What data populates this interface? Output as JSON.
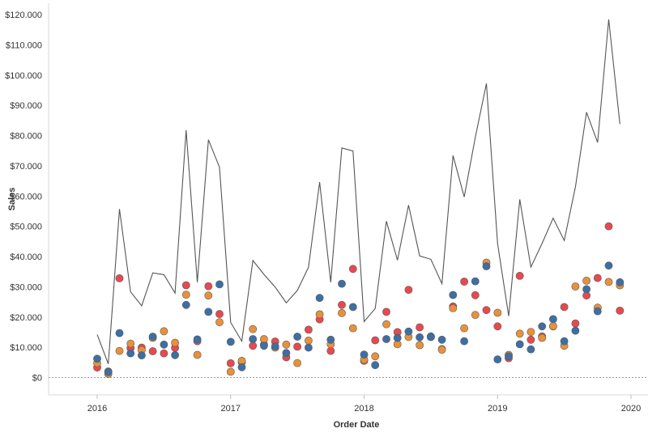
{
  "chart_data": {
    "type": "line",
    "xlabel": "Order Date",
    "ylabel": "Sales",
    "xlim": [
      2016,
      2020
    ],
    "ylim": [
      0,
      120000
    ],
    "x_ticks": [
      {
        "value": 2016,
        "label": "2016"
      },
      {
        "value": 2017,
        "label": "2017"
      },
      {
        "value": 2018,
        "label": "2018"
      },
      {
        "value": 2019,
        "label": "2019"
      },
      {
        "value": 2020,
        "label": "2020"
      }
    ],
    "y_ticks": [
      {
        "value": 0,
        "label": "$0"
      },
      {
        "value": 10000,
        "label": "$10.000"
      },
      {
        "value": 20000,
        "label": "$20.000"
      },
      {
        "value": 30000,
        "label": "$30.000"
      },
      {
        "value": 40000,
        "label": "$40.000"
      },
      {
        "value": 50000,
        "label": "$50.000"
      },
      {
        "value": 60000,
        "label": "$60.000"
      },
      {
        "value": 70000,
        "label": "$70.000"
      },
      {
        "value": 80000,
        "label": "$80.000"
      },
      {
        "value": 90000,
        "label": "$90.000"
      },
      {
        "value": 100000,
        "label": "$100.000"
      },
      {
        "value": 110000,
        "label": "$110.000"
      },
      {
        "value": 120000,
        "label": "$120.000"
      }
    ],
    "grid": false,
    "legend": "none",
    "zero_line": "dotted",
    "x": [
      "2016-01",
      "2016-02",
      "2016-03",
      "2016-04",
      "2016-05",
      "2016-06",
      "2016-07",
      "2016-08",
      "2016-09",
      "2016-10",
      "2016-11",
      "2016-12",
      "2017-01",
      "2017-02",
      "2017-03",
      "2017-04",
      "2017-05",
      "2017-06",
      "2017-07",
      "2017-08",
      "2017-09",
      "2017-10",
      "2017-11",
      "2017-12",
      "2018-01",
      "2018-02",
      "2018-03",
      "2018-04",
      "2018-05",
      "2018-06",
      "2018-07",
      "2018-08",
      "2018-09",
      "2018-10",
      "2018-11",
      "2018-12",
      "2019-01",
      "2019-02",
      "2019-03",
      "2019-04",
      "2019-05",
      "2019-06",
      "2019-07",
      "2019-08",
      "2019-09",
      "2019-10",
      "2019-11",
      "2019-12"
    ],
    "series": [
      {
        "color": "#555555",
        "kind": "line",
        "values": [
          14200,
          4500,
          55700,
          28300,
          23700,
          34600,
          34000,
          27900,
          81800,
          31500,
          78600,
          69500,
          18200,
          12000,
          38700,
          34100,
          29900,
          24700,
          28800,
          36500,
          64600,
          31500,
          75900,
          74900,
          18500,
          22800,
          51700,
          38800,
          57000,
          40200,
          39100,
          31000,
          73400,
          59700,
          79400,
          97200,
          44300,
          20300,
          58900,
          36500,
          44300,
          52700,
          45300,
          63000,
          87700,
          77700,
          118400,
          83800
        ]
      },
      {
        "color": "#e8494f",
        "kind": "dots",
        "values": [
          3300,
          2000,
          32800,
          9700,
          9900,
          8700,
          8000,
          9800,
          30500,
          12000,
          30200,
          21000,
          4700,
          5000,
          10500,
          10900,
          11900,
          6700,
          10200,
          15800,
          19200,
          8800,
          24000,
          35900,
          5500,
          12300,
          21700,
          15000,
          29000,
          16600,
          13400,
          9400,
          23500,
          31700,
          27200,
          22300,
          16900,
          6400,
          33600,
          12500,
          13600,
          16900,
          23300,
          17900,
          27100,
          32900,
          50000,
          22100
        ]
      },
      {
        "color": "#e8913a",
        "kind": "dots",
        "values": [
          4800,
          1200,
          8800,
          11200,
          9100,
          13100,
          15300,
          11500,
          27400,
          7500,
          27100,
          18300,
          1900,
          5500,
          16000,
          12700,
          9900,
          10900,
          4800,
          12200,
          20900,
          11000,
          21300,
          16300,
          5900,
          7000,
          17600,
          11000,
          13400,
          10700,
          13600,
          9200,
          22900,
          16300,
          20700,
          38000,
          21400,
          7500,
          14500,
          15100,
          13100,
          17000,
          10500,
          30100,
          32000,
          23100,
          31600,
          30500
        ]
      },
      {
        "color": "#3d6fa3",
        "kind": "dots",
        "values": [
          6200,
          1800,
          14700,
          8000,
          7300,
          13500,
          10900,
          7400,
          24000,
          12600,
          21700,
          30800,
          11800,
          3400,
          12700,
          10500,
          10300,
          8100,
          13500,
          9900,
          26300,
          12500,
          31000,
          23300,
          7600,
          4100,
          12700,
          13100,
          15200,
          13300,
          13400,
          12500,
          27300,
          12000,
          31800,
          36800,
          6000,
          7000,
          11000,
          9300,
          16900,
          19300,
          12000,
          15500,
          29200,
          21900,
          37000,
          31500
        ]
      }
    ]
  }
}
